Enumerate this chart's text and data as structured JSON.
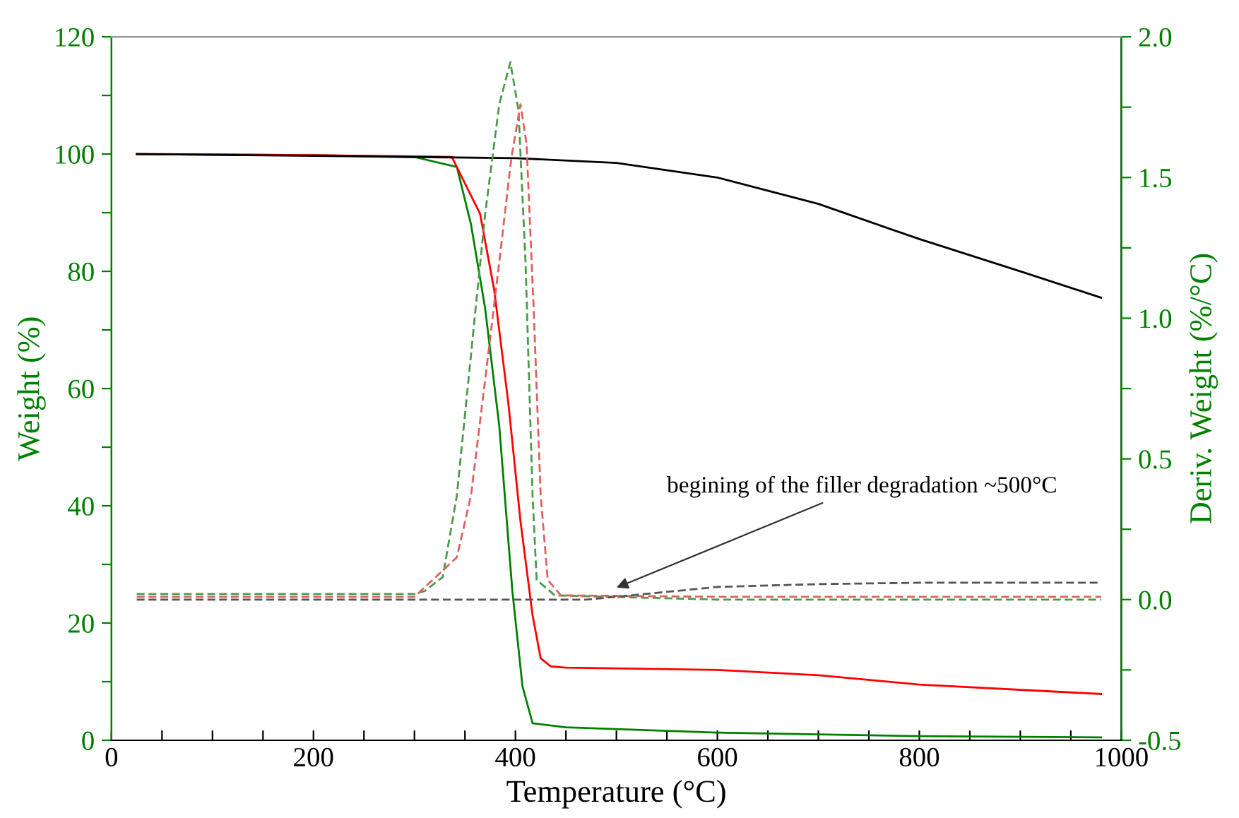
{
  "chart_data": {
    "type": "line",
    "xlabel": "Temperature (°C)",
    "ylabel": "Weight (%)",
    "y2label": "Deriv. Weight (%/°C)",
    "xlim": [
      0,
      1000
    ],
    "ylim": [
      0,
      120
    ],
    "y2lim": [
      -0.5,
      2.0
    ],
    "xticks": [
      0,
      {
        "value": 50,
        "label": null
      },
      200,
      {
        "value": 100,
        "label": null
      },
      {
        "value": 150,
        "label": null
      },
      {
        "value": 250,
        "label": null
      },
      {
        "value": 300,
        "label": null
      },
      {
        "value": 350,
        "label": null
      },
      400,
      {
        "value": 450,
        "label": null
      },
      {
        "value": 500,
        "label": null
      },
      {
        "value": 550,
        "label": null
      },
      600,
      {
        "value": 650,
        "label": null
      },
      {
        "value": 700,
        "label": null
      },
      {
        "value": 750,
        "label": null
      },
      800,
      {
        "value": 850,
        "label": null
      },
      {
        "value": 900,
        "label": null
      },
      {
        "value": 950,
        "label": null
      },
      1000
    ],
    "yticks": [
      0,
      {
        "value": 10,
        "label": null
      },
      20,
      {
        "value": 30,
        "label": null
      },
      40,
      {
        "value": 50,
        "label": null
      },
      60,
      {
        "value": 70,
        "label": null
      },
      80,
      {
        "value": 90,
        "label": null
      },
      100,
      {
        "value": 110,
        "label": null
      },
      120
    ],
    "y2ticks": [
      {
        "value": -0.5,
        "label": "-0.5"
      },
      {
        "value": -0.25,
        "label": null
      },
      {
        "value": 0.0,
        "label": "0.0"
      },
      {
        "value": 0.25,
        "label": null
      },
      {
        "value": 0.5,
        "label": "0.5"
      },
      {
        "value": 0.75,
        "label": null
      },
      {
        "value": 1.0,
        "label": "1.0"
      },
      {
        "value": 1.25,
        "label": null
      },
      {
        "value": 1.5,
        "label": "1.5"
      },
      {
        "value": 1.75,
        "label": null
      },
      {
        "value": 2.0,
        "label": "2.0"
      }
    ],
    "grid": false,
    "marker": "none",
    "series": [
      {
        "color": "#000000",
        "line_style": "solid",
        "x": [
          25,
          200,
          300,
          400,
          500,
          600,
          700,
          800,
          900,
          980
        ],
        "values": [
          100,
          99.7,
          99.5,
          99.3,
          98.5,
          96,
          91.5,
          85.5,
          80,
          75.5
        ]
      },
      {
        "color": "#ff0000",
        "line_style": "solid",
        "x": [
          25,
          200,
          300,
          337,
          365,
          379,
          393,
          405,
          417,
          425,
          435,
          450,
          600,
          700,
          800,
          980
        ],
        "values": [
          100,
          99.8,
          99.6,
          99.5,
          89.8,
          76.8,
          57.5,
          37.4,
          21.3,
          14,
          12.6,
          12.4,
          12,
          11.1,
          9.5,
          7.9
        ]
      },
      {
        "color": "#008000",
        "line_style": "solid",
        "x": [
          25,
          200,
          300,
          342,
          356,
          370,
          384,
          397,
          407,
          417,
          450,
          600,
          800,
          980
        ],
        "values": [
          100,
          99.8,
          99.5,
          97.8,
          88,
          73.7,
          53.6,
          25.4,
          9.2,
          2.9,
          2.2,
          1.3,
          0.7,
          0.5
        ]
      },
      {
        "color": "#555555",
        "line_style": "dashed",
        "axis": "y2",
        "x": [
          25,
          300,
          470,
          500,
          600,
          700,
          800,
          980
        ],
        "values": [
          0,
          0,
          0,
          0.01,
          0.045,
          0.055,
          0.06,
          0.06
        ]
      },
      {
        "color": "#e06060",
        "line_style": "dashed",
        "axis": "y2",
        "x": [
          25,
          300,
          342,
          356,
          370,
          384,
          396,
          405,
          411,
          418,
          425,
          432,
          445,
          600,
          980
        ],
        "values": [
          0.01,
          0.01,
          0.15,
          0.37,
          0.78,
          1.2,
          1.57,
          1.76,
          1.62,
          1.04,
          0.37,
          0.07,
          0.015,
          0.01,
          0.01
        ]
      },
      {
        "color": "#4a9a4a",
        "line_style": "dashed",
        "axis": "y2",
        "x": [
          25,
          300,
          310,
          328,
          342,
          356,
          370,
          384,
          395,
          403,
          410,
          417,
          421,
          439,
          600,
          980
        ],
        "values": [
          0.02,
          0.02,
          0.03,
          0.08,
          0.37,
          0.87,
          1.37,
          1.76,
          1.91,
          1.74,
          1.2,
          0.37,
          0.07,
          0.015,
          0.0,
          0.0
        ]
      }
    ],
    "annotations": [
      "begining of the filler degradation ~500°C"
    ]
  }
}
